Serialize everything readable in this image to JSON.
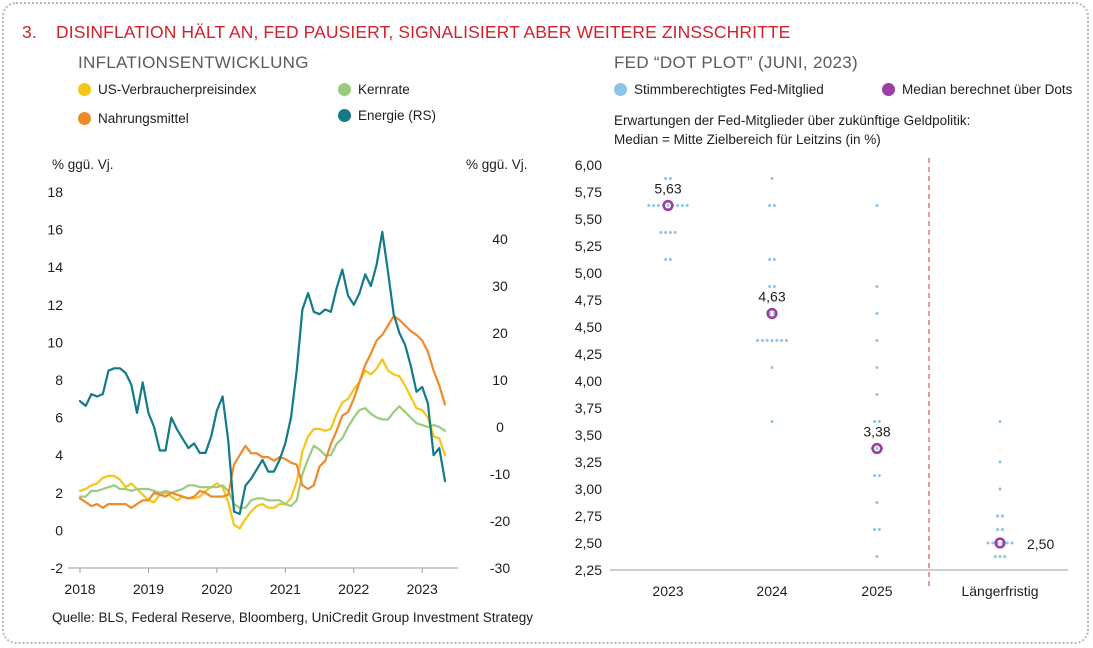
{
  "figure": {
    "number": "3.",
    "title": "DISINFLATION HÄLT AN, FED PAUSIERT, SIGNALISIERT ABER WEITERE ZINSSCHRITTE",
    "source": "Quelle: BLS, Federal Reserve, Bloomberg, UniCredit Group Investment Strategy"
  },
  "colors": {
    "title": "#d41f2d",
    "cpi": "#f5c518",
    "core": "#9acb7e",
    "food": "#ef8a2b",
    "energy": "#137a88",
    "dots": "#8cc3ea",
    "median": "#9c3fa0",
    "divider": "#e06060"
  },
  "chart_data": [
    {
      "type": "line",
      "title": "INFLATIONSENTWICKLUNG",
      "ylabel_left": "% ggü. Vj.",
      "ylabel_right": "% ggü. Vj.",
      "ylim_left": [
        -2,
        18
      ],
      "ylim_right": [
        -30,
        50
      ],
      "yticks_left": [
        "18",
        "16",
        "14",
        "12",
        "10",
        "8",
        "6",
        "4",
        "2",
        "0",
        "-2"
      ],
      "yticks_right": [
        "40",
        "30",
        "20",
        "10",
        "0",
        "-10",
        "-20",
        "-30"
      ],
      "xticks": [
        "2018",
        "2019",
        "2020",
        "2021",
        "2022",
        "2023"
      ],
      "legend": [
        {
          "key": "cpi",
          "label": "US-Verbraucherpreisindex"
        },
        {
          "key": "core",
          "label": "Kernrate"
        },
        {
          "key": "food",
          "label": "Nahrungsmittel"
        },
        {
          "key": "energy",
          "label": "Energie (RS)"
        }
      ],
      "x": [
        "2018-01",
        "2018-02",
        "2018-03",
        "2018-04",
        "2018-05",
        "2018-06",
        "2018-07",
        "2018-08",
        "2018-09",
        "2018-10",
        "2018-11",
        "2018-12",
        "2019-01",
        "2019-02",
        "2019-03",
        "2019-04",
        "2019-05",
        "2019-06",
        "2019-07",
        "2019-08",
        "2019-09",
        "2019-10",
        "2019-11",
        "2019-12",
        "2020-01",
        "2020-02",
        "2020-03",
        "2020-04",
        "2020-05",
        "2020-06",
        "2020-07",
        "2020-08",
        "2020-09",
        "2020-10",
        "2020-11",
        "2020-12",
        "2021-01",
        "2021-02",
        "2021-03",
        "2021-04",
        "2021-05",
        "2021-06",
        "2021-07",
        "2021-08",
        "2021-09",
        "2021-10",
        "2021-11",
        "2021-12",
        "2022-01",
        "2022-02",
        "2022-03",
        "2022-04",
        "2022-05",
        "2022-06",
        "2022-07",
        "2022-08",
        "2022-09",
        "2022-10",
        "2022-11",
        "2022-12",
        "2023-01",
        "2023-02",
        "2023-03",
        "2023-04",
        "2023-05"
      ],
      "series": [
        {
          "key": "cpi",
          "name": "US-Verbraucherpreisindex",
          "axis": "left",
          "values": [
            2.1,
            2.2,
            2.4,
            2.5,
            2.8,
            2.9,
            2.9,
            2.7,
            2.3,
            2.5,
            2.2,
            1.9,
            1.6,
            1.5,
            1.9,
            2.0,
            1.8,
            1.6,
            1.8,
            1.7,
            1.7,
            1.8,
            2.1,
            2.3,
            2.5,
            2.3,
            1.5,
            0.3,
            0.1,
            0.6,
            1.0,
            1.3,
            1.4,
            1.2,
            1.2,
            1.4,
            1.4,
            1.7,
            2.6,
            4.2,
            5.0,
            5.4,
            5.4,
            5.3,
            5.4,
            6.2,
            6.8,
            7.0,
            7.5,
            7.9,
            8.5,
            8.3,
            8.6,
            9.1,
            8.5,
            8.3,
            8.2,
            7.7,
            7.1,
            6.5,
            6.4,
            6.0,
            5.0,
            4.9,
            4.0
          ]
        },
        {
          "key": "core",
          "name": "Kernrate",
          "axis": "left",
          "values": [
            1.8,
            1.8,
            2.1,
            2.1,
            2.2,
            2.3,
            2.4,
            2.2,
            2.2,
            2.1,
            2.2,
            2.2,
            2.2,
            2.1,
            2.0,
            2.1,
            2.0,
            2.1,
            2.2,
            2.4,
            2.4,
            2.3,
            2.3,
            2.3,
            2.3,
            2.4,
            2.1,
            1.4,
            1.2,
            1.2,
            1.6,
            1.7,
            1.7,
            1.6,
            1.6,
            1.6,
            1.4,
            1.3,
            1.6,
            3.0,
            3.8,
            4.5,
            4.3,
            4.0,
            4.0,
            4.6,
            4.9,
            5.5,
            6.0,
            6.4,
            6.5,
            6.2,
            6.0,
            5.9,
            5.9,
            6.3,
            6.6,
            6.3,
            6.0,
            5.7,
            5.6,
            5.5,
            5.6,
            5.5,
            5.3
          ]
        },
        {
          "key": "food",
          "name": "Nahrungsmittel",
          "axis": "left",
          "values": [
            1.7,
            1.5,
            1.3,
            1.4,
            1.2,
            1.4,
            1.4,
            1.4,
            1.4,
            1.2,
            1.4,
            1.6,
            1.6,
            2.0,
            1.9,
            1.8,
            2.0,
            1.9,
            1.8,
            1.7,
            1.8,
            2.1,
            2.0,
            1.8,
            1.8,
            1.8,
            1.9,
            3.5,
            4.0,
            4.5,
            4.1,
            4.1,
            3.9,
            3.9,
            3.7,
            3.9,
            3.8,
            3.6,
            3.5,
            2.4,
            2.2,
            2.4,
            3.4,
            3.7,
            4.6,
            5.3,
            6.1,
            6.3,
            7.0,
            7.9,
            8.8,
            9.4,
            10.1,
            10.4,
            10.9,
            11.4,
            11.2,
            10.9,
            10.6,
            10.4,
            10.1,
            9.5,
            8.5,
            7.7,
            6.7
          ]
        },
        {
          "key": "energy",
          "name": "Energie (RS)",
          "axis": "right",
          "values": [
            5.5,
            4.5,
            7.0,
            6.5,
            7.0,
            12.0,
            12.5,
            12.5,
            11.5,
            9.0,
            3.0,
            9.5,
            3.0,
            0.0,
            -5.0,
            -5.0,
            2.0,
            -0.5,
            -2.5,
            -4.5,
            -3.5,
            -5.5,
            -5.5,
            -2.0,
            3.5,
            6.5,
            -3.0,
            -18.0,
            -18.5,
            -12.5,
            -11.0,
            -9.0,
            -7.0,
            -9.5,
            -9.5,
            -7.0,
            -3.5,
            2.0,
            12.0,
            25.0,
            28.5,
            24.5,
            24.0,
            25.0,
            24.5,
            29.5,
            33.5,
            28.0,
            26.0,
            28.5,
            32.5,
            30.0,
            34.5,
            41.5,
            33.0,
            24.0,
            20.0,
            17.5,
            13.0,
            7.5,
            8.5,
            5.0,
            -6.0,
            -4.5,
            -11.5
          ]
        }
      ]
    },
    {
      "type": "scatter",
      "title": "FED “DOT PLOT” (JUNI, 2023)",
      "subtitle": "Erwartungen der Fed-Mitglieder über zukünftige Geldpolitik:",
      "subtitle2": "Median = Mitte Zielbereich für Leitzins (in %)",
      "legend": [
        {
          "key": "dots",
          "label": "Stimmberechtigtes Fed-Mitglied"
        },
        {
          "key": "median",
          "label": "Median berechnet über Dots"
        }
      ],
      "ylim": [
        2.25,
        6.0
      ],
      "yticks": [
        "6,00",
        "5,75",
        "5,50",
        "5,25",
        "5,00",
        "4,75",
        "4,50",
        "4,25",
        "4,00",
        "3,75",
        "3,50",
        "3,25",
        "3,00",
        "2,75",
        "2,50",
        "2,25"
      ],
      "categories": [
        "2023",
        "2024",
        "2025",
        "Längerfristig"
      ],
      "dots": [
        [
          {
            "y": 5.875,
            "n": 2
          },
          {
            "y": 5.625,
            "n": 9
          },
          {
            "y": 5.375,
            "n": 4
          },
          {
            "y": 5.125,
            "n": 2
          }
        ],
        [
          {
            "y": 5.875,
            "n": 1
          },
          {
            "y": 5.625,
            "n": 2
          },
          {
            "y": 5.125,
            "n": 2
          },
          {
            "y": 4.875,
            "n": 2
          },
          {
            "y": 4.625,
            "n": 2
          },
          {
            "y": 4.375,
            "n": 7
          },
          {
            "y": 4.125,
            "n": 1
          },
          {
            "y": 3.625,
            "n": 1
          }
        ],
        [
          {
            "y": 5.625,
            "n": 1
          },
          {
            "y": 4.875,
            "n": 1
          },
          {
            "y": 4.625,
            "n": 1
          },
          {
            "y": 4.375,
            "n": 1
          },
          {
            "y": 4.125,
            "n": 1
          },
          {
            "y": 3.875,
            "n": 1
          },
          {
            "y": 3.625,
            "n": 2
          },
          {
            "y": 3.375,
            "n": 3
          },
          {
            "y": 3.125,
            "n": 2
          },
          {
            "y": 2.875,
            "n": 1
          },
          {
            "y": 2.625,
            "n": 2
          },
          {
            "y": 2.375,
            "n": 1
          }
        ],
        [
          {
            "y": 3.625,
            "n": 1
          },
          {
            "y": 3.25,
            "n": 1
          },
          {
            "y": 3.0,
            "n": 1
          },
          {
            "y": 2.75,
            "n": 2
          },
          {
            "y": 2.625,
            "n": 2
          },
          {
            "y": 2.5,
            "n": 6
          },
          {
            "y": 2.375,
            "n": 3
          }
        ]
      ],
      "medians": [
        {
          "value": 5.625,
          "label": "5,63"
        },
        {
          "value": 4.625,
          "label": "4,63"
        },
        {
          "value": 3.375,
          "label": "3,38"
        },
        {
          "value": 2.5,
          "label": "2,50"
        }
      ]
    }
  ]
}
